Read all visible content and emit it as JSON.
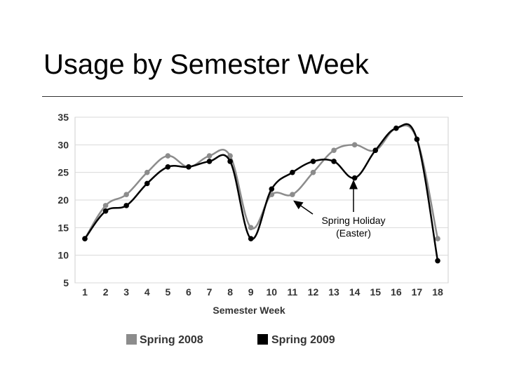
{
  "slide": {
    "title": "Usage by Semester Week"
  },
  "chart_data": {
    "type": "line",
    "xlabel": "Semester Week",
    "ylabel": "",
    "categories": [
      "1",
      "2",
      "3",
      "4",
      "5",
      "6",
      "7",
      "8",
      "9",
      "10",
      "11",
      "12",
      "13",
      "14",
      "15",
      "16",
      "17",
      "18"
    ],
    "ylim": [
      5,
      35
    ],
    "yticks": [
      "5",
      "10",
      "15",
      "20",
      "25",
      "30",
      "35"
    ],
    "grid": true,
    "legend": "bottom",
    "series": [
      {
        "name": "Spring 2008",
        "color": "#8c8c8c",
        "values": [
          13,
          19,
          21,
          25,
          28,
          26,
          28,
          28,
          15,
          21,
          21,
          25,
          29,
          30,
          29,
          33,
          31,
          13
        ]
      },
      {
        "name": "Spring 2009",
        "color": "#000000",
        "values": [
          13,
          18,
          19,
          23,
          26,
          26,
          27,
          27,
          13,
          22,
          25,
          27,
          27,
          24,
          29,
          33,
          31,
          9
        ]
      }
    ],
    "annotations": [
      {
        "line1": "Spring Holiday",
        "line2": "(Easter)",
        "points_to": [
          "11",
          "14"
        ]
      }
    ]
  }
}
